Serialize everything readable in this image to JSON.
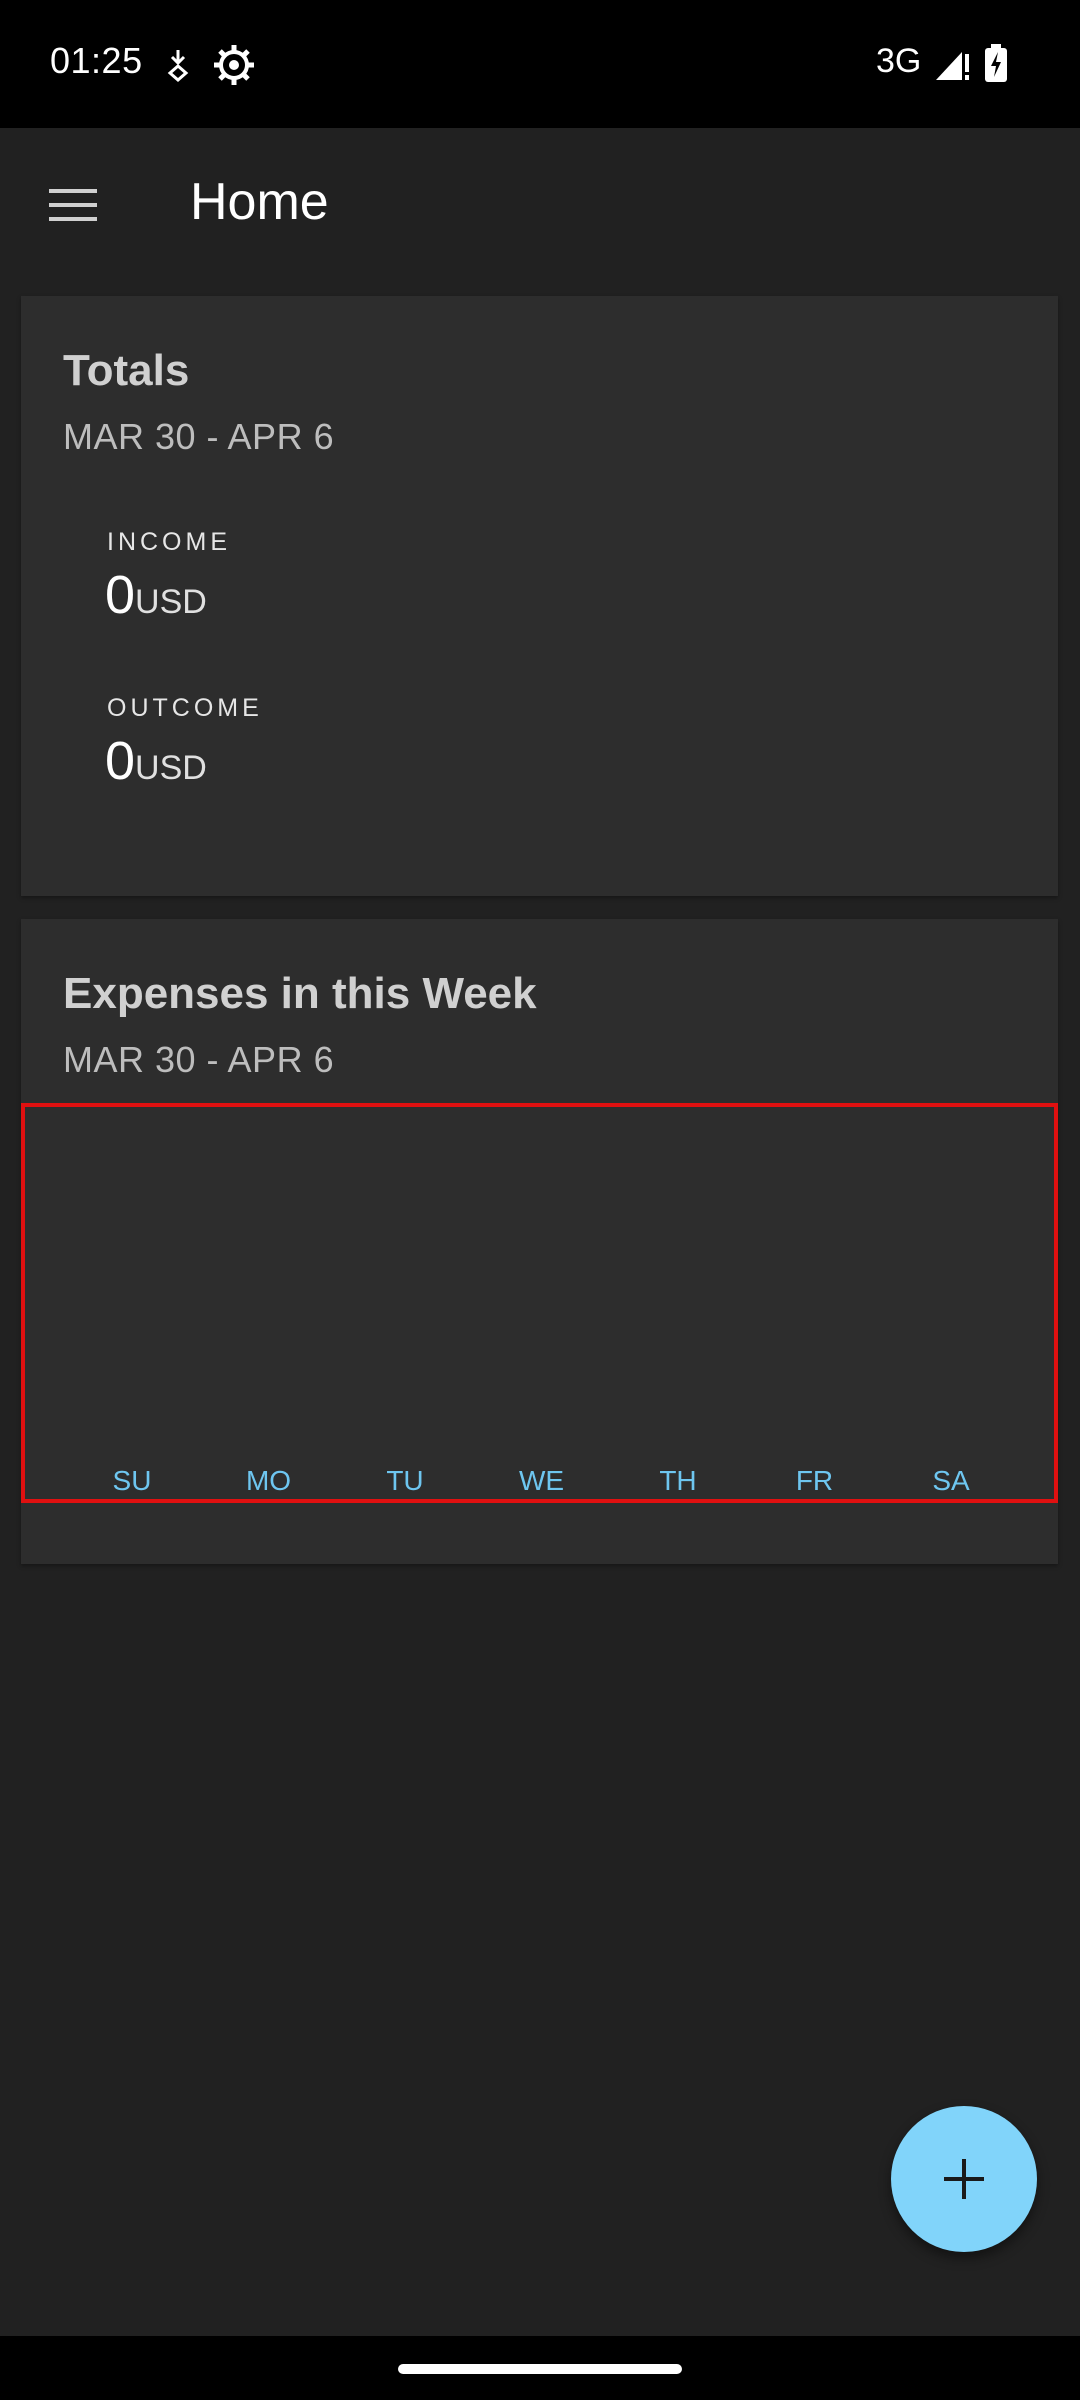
{
  "status_bar": {
    "time": "01:25",
    "network": "3G",
    "icons": [
      "download-arrow-icon",
      "settings-gear-icon",
      "signal-icon",
      "battery-charging-icon"
    ]
  },
  "app_bar": {
    "title": "Home",
    "menu_icon": "hamburger-menu-icon"
  },
  "totals": {
    "title": "Totals",
    "range": "MAR 30 - APR 6",
    "income": {
      "label": "INCOME",
      "value": "0",
      "unit": "USD"
    },
    "outcome": {
      "label": "OUTCOME",
      "value": "0",
      "unit": "USD"
    }
  },
  "expenses": {
    "title": "Expenses in this Week",
    "range": "MAR 30 - APR 6"
  },
  "chart_data": {
    "type": "bar",
    "categories": [
      "SU",
      "MO",
      "TU",
      "WE",
      "TH",
      "FR",
      "SA"
    ],
    "values": [
      0,
      0,
      0,
      0,
      0,
      0,
      0
    ],
    "title": "",
    "xlabel": "",
    "ylabel": "",
    "grid": false,
    "label_color": "#6ec6f0"
  },
  "fab": {
    "icon": "plus-icon",
    "color": "#81d4fa"
  },
  "colors": {
    "background": "#212121",
    "card": "#2d2d2d",
    "accent": "#81d4fa",
    "highlight_border": "#e01010"
  }
}
